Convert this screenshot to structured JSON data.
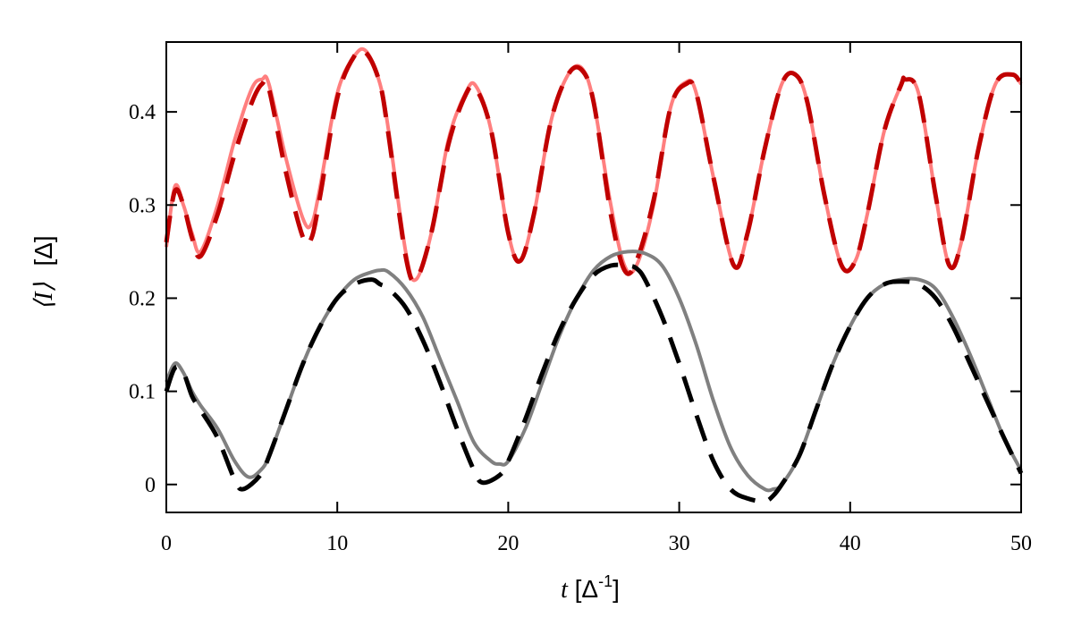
{
  "chart_data": {
    "type": "line",
    "title": "",
    "xlabel": {
      "var": "t",
      "unit_open": " [Δ",
      "sup": "-1",
      "unit_close": "]"
    },
    "ylabel": {
      "var": "⟨I⟩",
      "unit": "[Δ]"
    },
    "xlim": [
      0,
      50
    ],
    "ylim": [
      -0.03,
      0.475
    ],
    "x_ticks": [
      0,
      10,
      20,
      30,
      40,
      50
    ],
    "x_tick_labels": [
      "0",
      "10",
      "20",
      "30",
      "40",
      "50"
    ],
    "y_ticks": [
      0,
      0.1,
      0.2,
      0.3,
      0.4
    ],
    "y_tick_labels": [
      "0",
      "0.1",
      "0.2",
      "0.3",
      "0.4"
    ],
    "grid": false,
    "legend": "none",
    "series": [
      {
        "color": "#ff7f7f",
        "style": "solid",
        "x": [
          0,
          0.5,
          1,
          1.5,
          2,
          3,
          4,
          5,
          5.6,
          6,
          7,
          8,
          8.5,
          9,
          10,
          11,
          11.7,
          12.5,
          13,
          14,
          14.6,
          15.5,
          16.5,
          17.5,
          18.1,
          19,
          20,
          20.7,
          21.5,
          22.5,
          23.5,
          24.3,
          25,
          26,
          26.8,
          27.5,
          28.5,
          29.5,
          30.4,
          31,
          32,
          33.2,
          34,
          35,
          36,
          36.8,
          37.5,
          38.5,
          39.5,
          40.3,
          41,
          42,
          43,
          43.2,
          44,
          45,
          45.8,
          46.5,
          47.5,
          48.5,
          49.5,
          50
        ],
        "y": [
          0.255,
          0.32,
          0.3,
          0.27,
          0.25,
          0.3,
          0.37,
          0.425,
          0.435,
          0.43,
          0.35,
          0.285,
          0.28,
          0.32,
          0.42,
          0.46,
          0.465,
          0.43,
          0.38,
          0.25,
          0.22,
          0.27,
          0.37,
          0.42,
          0.428,
          0.38,
          0.27,
          0.24,
          0.29,
          0.39,
          0.44,
          0.447,
          0.41,
          0.3,
          0.235,
          0.235,
          0.3,
          0.405,
          0.432,
          0.42,
          0.33,
          0.235,
          0.27,
          0.36,
          0.43,
          0.44,
          0.41,
          0.31,
          0.235,
          0.24,
          0.29,
          0.38,
          0.43,
          0.435,
          0.42,
          0.31,
          0.235,
          0.26,
          0.36,
          0.43,
          0.44,
          0.43
        ]
      },
      {
        "color": "#c00000",
        "style": "dashed",
        "x": [
          0,
          0.5,
          1,
          1.5,
          2,
          3,
          4,
          5,
          5.6,
          6,
          7,
          8,
          8.5,
          9,
          10,
          11,
          11.7,
          12.5,
          13,
          14,
          14.6,
          15.5,
          16.5,
          17.5,
          18.1,
          19,
          20,
          20.7,
          21.5,
          22.5,
          23.5,
          24.3,
          25,
          26,
          26.8,
          27.5,
          28.5,
          29.5,
          30.4,
          31,
          32,
          33.2,
          34,
          35,
          36,
          36.8,
          37.5,
          38.5,
          39.5,
          40.3,
          41,
          42,
          43,
          43.2,
          44,
          45,
          45.8,
          46.5,
          47.5,
          48.5,
          49.5,
          50
        ],
        "y": [
          0.26,
          0.315,
          0.3,
          0.265,
          0.245,
          0.29,
          0.355,
          0.41,
          0.43,
          0.425,
          0.335,
          0.265,
          0.265,
          0.31,
          0.415,
          0.46,
          0.463,
          0.43,
          0.375,
          0.245,
          0.22,
          0.27,
          0.365,
          0.418,
          0.425,
          0.38,
          0.27,
          0.24,
          0.29,
          0.39,
          0.44,
          0.445,
          0.41,
          0.29,
          0.23,
          0.24,
          0.305,
          0.405,
          0.43,
          0.42,
          0.33,
          0.235,
          0.27,
          0.36,
          0.43,
          0.44,
          0.41,
          0.31,
          0.235,
          0.24,
          0.29,
          0.38,
          0.43,
          0.435,
          0.42,
          0.31,
          0.235,
          0.26,
          0.36,
          0.43,
          0.44,
          0.43
        ]
      },
      {
        "color": "#808080",
        "style": "solid",
        "x": [
          0,
          0.5,
          1,
          1.5,
          2,
          3,
          4,
          4.8,
          5.5,
          6,
          7,
          8,
          9,
          10,
          11,
          12,
          12.5,
          13,
          14,
          15,
          16,
          17,
          18,
          19,
          19.5,
          20,
          21,
          22,
          23,
          24,
          25,
          26,
          27,
          28,
          29,
          30,
          31,
          32,
          33,
          34,
          35,
          35.5,
          36,
          37,
          38,
          39,
          40,
          41,
          42,
          43,
          44,
          45,
          46,
          47,
          48,
          49,
          50
        ],
        "y": [
          0.11,
          0.13,
          0.12,
          0.1,
          0.085,
          0.06,
          0.025,
          0.008,
          0.015,
          0.03,
          0.08,
          0.13,
          0.17,
          0.2,
          0.22,
          0.228,
          0.23,
          0.228,
          0.21,
          0.18,
          0.135,
          0.09,
          0.045,
          0.025,
          0.022,
          0.025,
          0.06,
          0.11,
          0.16,
          0.2,
          0.23,
          0.245,
          0.25,
          0.248,
          0.235,
          0.2,
          0.15,
          0.09,
          0.04,
          0.01,
          -0.005,
          -0.005,
          0,
          0.03,
          0.08,
          0.13,
          0.17,
          0.2,
          0.215,
          0.22,
          0.22,
          0.21,
          0.18,
          0.14,
          0.095,
          0.05,
          0.015
        ]
      },
      {
        "color": "#000000",
        "style": "dashed",
        "x": [
          0,
          0.5,
          1,
          1.5,
          2,
          3,
          4,
          4.5,
          5.5,
          6,
          7,
          8,
          9,
          10,
          11,
          12,
          12.5,
          13,
          14,
          15,
          16,
          17,
          18,
          18.5,
          19.5,
          20,
          21,
          22,
          23,
          24,
          25,
          26,
          27,
          27.5,
          28,
          29,
          30,
          31,
          32,
          33,
          34,
          35,
          35.5,
          36,
          37,
          38,
          39,
          40,
          41,
          42,
          43,
          44,
          45,
          46,
          47,
          48,
          49,
          50
        ],
        "y": [
          0.1,
          0.125,
          0.12,
          0.095,
          0.08,
          0.05,
          0.005,
          -0.005,
          0.01,
          0.03,
          0.08,
          0.13,
          0.17,
          0.2,
          0.215,
          0.22,
          0.215,
          0.21,
          0.19,
          0.155,
          0.11,
          0.06,
          0.015,
          0.002,
          0.01,
          0.025,
          0.07,
          0.12,
          0.165,
          0.2,
          0.225,
          0.235,
          0.235,
          0.232,
          0.22,
          0.18,
          0.13,
          0.075,
          0.025,
          -0.005,
          -0.015,
          -0.018,
          -0.012,
          0,
          0.03,
          0.08,
          0.13,
          0.17,
          0.2,
          0.215,
          0.218,
          0.215,
          0.2,
          0.17,
          0.13,
          0.09,
          0.05,
          0.012
        ]
      }
    ]
  }
}
